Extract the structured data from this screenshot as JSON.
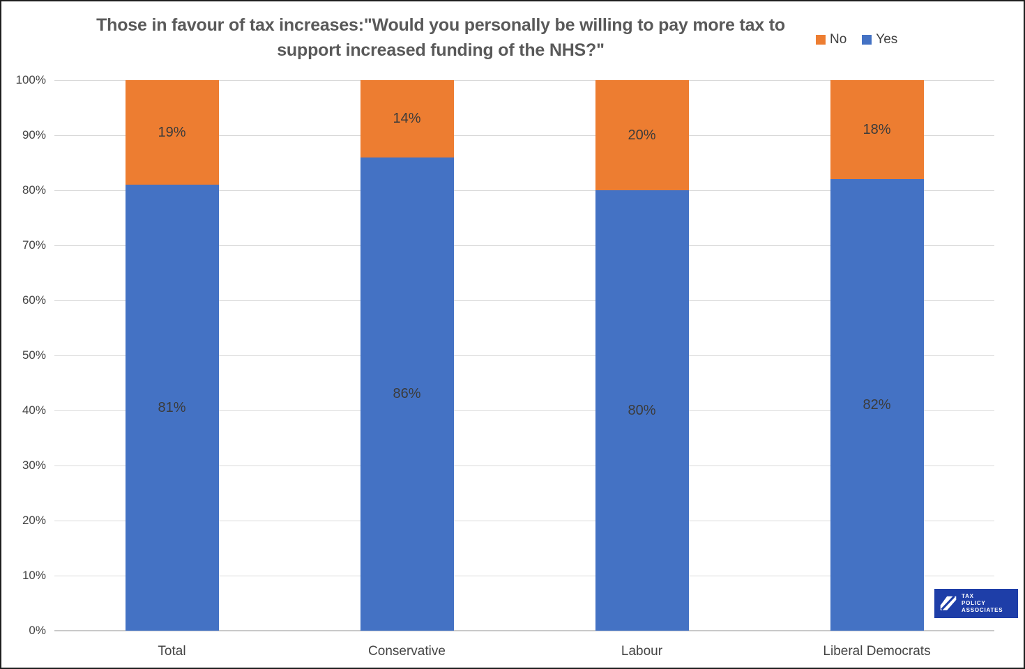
{
  "page": {
    "background": "#ffffff",
    "border_color": "#1f1f1f"
  },
  "chart_data": {
    "type": "bar",
    "stacked": true,
    "orientation": "vertical",
    "title": "Those in favour of tax increases:\"Would you personally be willing to pay more tax to support increased funding of the NHS?\"",
    "categories": [
      "Total",
      "Conservative",
      "Labour",
      "Liberal Democrats"
    ],
    "series": [
      {
        "name": "Yes",
        "color": "#4472C4",
        "values": [
          81,
          86,
          80,
          82
        ]
      },
      {
        "name": "No",
        "color": "#ED7D31",
        "values": [
          19,
          14,
          20,
          18
        ]
      }
    ],
    "data_labels": {
      "Yes": [
        "81%",
        "86%",
        "80%",
        "82%"
      ],
      "No": [
        "19%",
        "14%",
        "20%",
        "18%"
      ]
    },
    "label_suffix": "%",
    "y_axis": {
      "min": 0,
      "max": 100,
      "step": 10,
      "tick_labels": [
        "0%",
        "10%",
        "20%",
        "30%",
        "40%",
        "50%",
        "60%",
        "70%",
        "80%",
        "90%",
        "100%"
      ]
    },
    "xlabel": "",
    "ylabel": "",
    "ylim": [
      0,
      100
    ],
    "grid": true,
    "gridline_color": "#d9d9d9",
    "legend": {
      "position": "top-right",
      "items": [
        {
          "label": "No",
          "color": "#ED7D31"
        },
        {
          "label": "Yes",
          "color": "#4472C4"
        }
      ]
    }
  },
  "branding": {
    "logo_lines": [
      "TAX",
      "POLICY",
      "ASSOCIATES"
    ],
    "logo_bg": "#1e3ea8",
    "logo_fg": "#ffffff"
  }
}
